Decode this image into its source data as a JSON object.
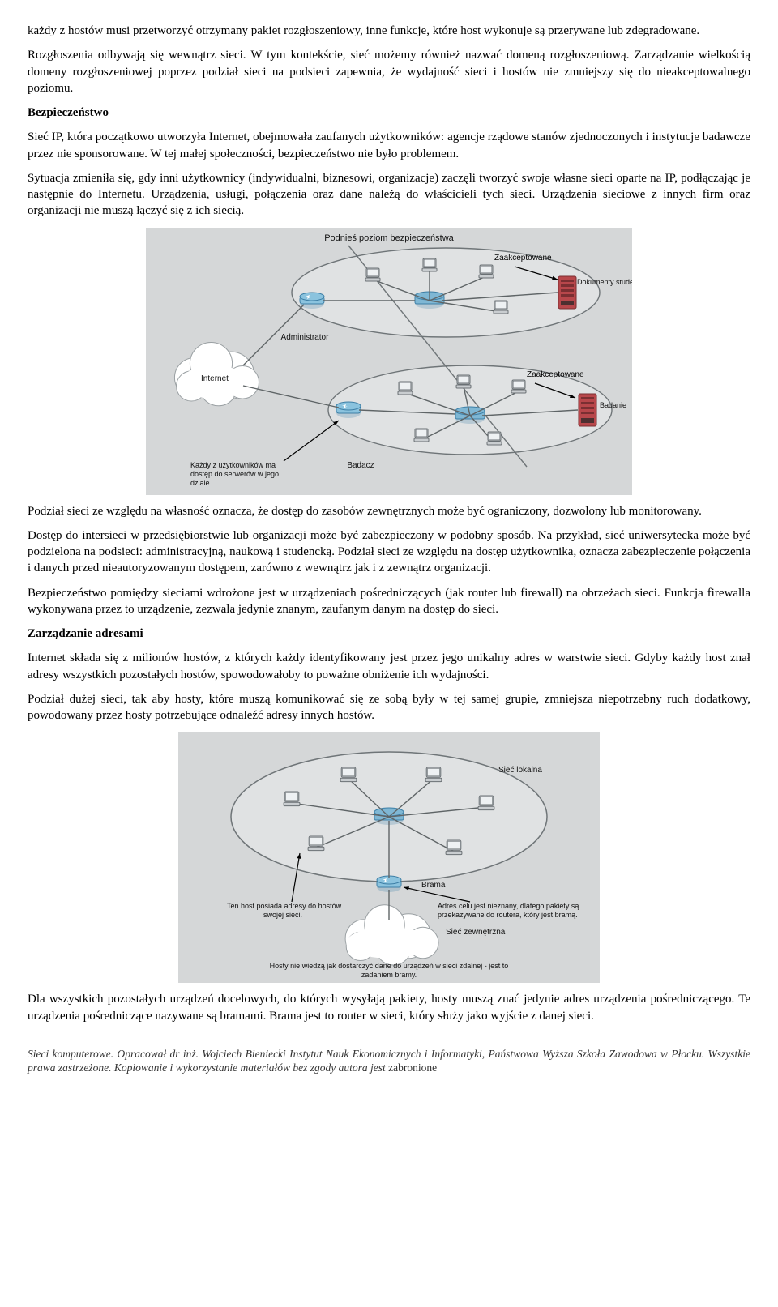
{
  "para1": "każdy z hostów musi przetworzyć otrzymany pakiet rozgłoszeniowy, inne funkcje, które host wykonuje są przerywane lub zdegradowane.",
  "para2": "Rozgłoszenia odbywają się wewnątrz sieci. W tym kontekście, sieć możemy również nazwać domeną rozgłoszeniową. Zarządzanie wielkością domeny rozgłoszeniowej poprzez podział sieci na podsieci zapewnia, że wydajność sieci i hostów nie zmniejszy się do nieakceptowalnego poziomu.",
  "h1": "Bezpieczeństwo",
  "para3": "Sieć IP, która początkowo utworzyła Internet, obejmowała zaufanych użytkowników: agencje rządowe stanów zjednoczonych i instytucje badawcze przez nie sponsorowane. W tej małej społeczności, bezpieczeństwo nie było problemem.",
  "para4": "Sytuacja zmieniła się, gdy inni użytkownicy (indywidualni, biznesowi, organizacje) zaczęli tworzyć swoje własne sieci oparte na IP, podłączając je następnie do Internetu. Urządzenia, usługi, połączenia oraz dane należą do właścicieli tych sieci. Urządzenia sieciowe z innych firm oraz organizacji nie muszą łączyć się z ich siecią.",
  "para5": "Podział sieci ze względu na własność oznacza, że dostęp do zasobów zewnętrznych może być ograniczony, dozwolony lub monitorowany.",
  "para6": "Dostęp do intersieci w przedsiębiorstwie lub organizacji może być zabezpieczony w podobny sposób. Na przykład, sieć uniwersytecka może być podzielona na podsieci: administracyjną, naukową i studencką. Podział sieci ze względu na dostęp użytkownika, oznacza zabezpieczenie połączenia i danych przed nieautoryzowanym dostępem, zarówno z wewnątrz jak i z zewnątrz organizacji.",
  "para7": "Bezpieczeństwo pomiędzy sieciami wdrożone jest w urządzeniach pośredniczących (jak router lub firewall) na obrzeżach sieci. Funkcja firewalla wykonywana przez to urządzenie, zezwala jedynie znanym, zaufanym danym na dostęp do sieci.",
  "h2": "Zarządzanie adresami",
  "para8": "Internet składa się z milionów hostów, z których każdy identyfikowany jest przez jego unikalny adres w warstwie sieci. Gdyby każdy host znał adresy wszystkich pozostałych hostów, spowodowałoby to poważne obniżenie ich wydajności.",
  "para9": "Podział dużej sieci, tak aby hosty, które muszą komunikować się ze sobą były w tej samej grupie, zmniejsza niepotrzebny ruch dodatkowy, powodowany przez hosty potrzebujące odnaleźć adresy innych hostów.",
  "para10": "Dla wszystkich pozostałych urządzeń docelowych, do których wysyłają pakiety, hosty muszą znać jedynie adres urządzenia pośredniczącego. Te urządzenia pośredniczące nazywane są bramami. Brama jest to router w sieci, który służy jako wyjście z danej sieci.",
  "footer_italic": "Sieci komputerowe. Opracował dr inż. Wojciech Bieniecki Instytut Nauk Ekonomicznych i Informatyki, Państwowa Wyższa Szkoła Zawodowa w Płocku. Wszystkie prawa zastrzeżone. Kopiowanie i wykorzystanie materiałów bez zgody autora jest",
  "footer_plain": "zabronione",
  "diagram1": {
    "bg": "#d5d7d8",
    "cloud_fill": "#ffffff",
    "cloud_stroke": "#9aa0a3",
    "ellipse_fill": "#e0e2e3",
    "ellipse_stroke": "#6f7578",
    "line_color": "#5f6567",
    "pc_fill": "#c9cdd0",
    "pc_stroke": "#6a7074",
    "sw_fill": "#7fb7d4",
    "sw_stroke": "#3d7fa6",
    "router_fill": "#8bc3de",
    "router_stroke": "#3d7fa6",
    "server_fill": "#b8474b",
    "server_stroke": "#7a2f32",
    "text_color": "#111",
    "arrow_color": "#000",
    "title": "Podnieś poziom bezpieczeństwa",
    "labels": {
      "zaakceptowane1": "Zaakceptowane",
      "dokumenty": "Dokumenty studentów",
      "administrator": "Administrator",
      "internet": "Internet",
      "zaakceptowane2": "Zaakceptowane",
      "badanie": "Badanie",
      "badacz": "Badacz",
      "user_note_l1": "Każdy z użytkowników ma",
      "user_note_l2": "dostęp do serwerów w jego",
      "user_note_l3": "dziale."
    },
    "font_label": 10,
    "font_title": 11
  },
  "diagram2": {
    "bg": "#d5d7d8",
    "ellipse_fill": "#e0e2e3",
    "ellipse_stroke": "#6f7578",
    "cloud_fill": "#ffffff",
    "cloud_stroke": "#9aa0a3",
    "line_color": "#5f6567",
    "pc_fill": "#c9cdd0",
    "pc_stroke": "#6a7074",
    "sw_fill": "#7fb7d4",
    "sw_stroke": "#3d7fa6",
    "router_fill": "#8bc3de",
    "router_stroke": "#3d7fa6",
    "text_color": "#111",
    "labels": {
      "siec_lokalna": "Sieć lokalna",
      "brama": "Brama",
      "siec_zewn": "Sieć zewnętrzna",
      "left_l1": "Ten host posiada adresy do hostów",
      "left_l2": "swojej sieci.",
      "right_l1": "Adres celu jest nieznany, dlatego pakiety są",
      "right_l2": "przekazywane do routera, który jest bramą.",
      "bottom_l1": "Hosty nie wiedzą jak dostarczyć dane do urządzeń w sieci zdalnej - jest to",
      "bottom_l2": "zadaniem bramy."
    },
    "font_label": 10
  }
}
